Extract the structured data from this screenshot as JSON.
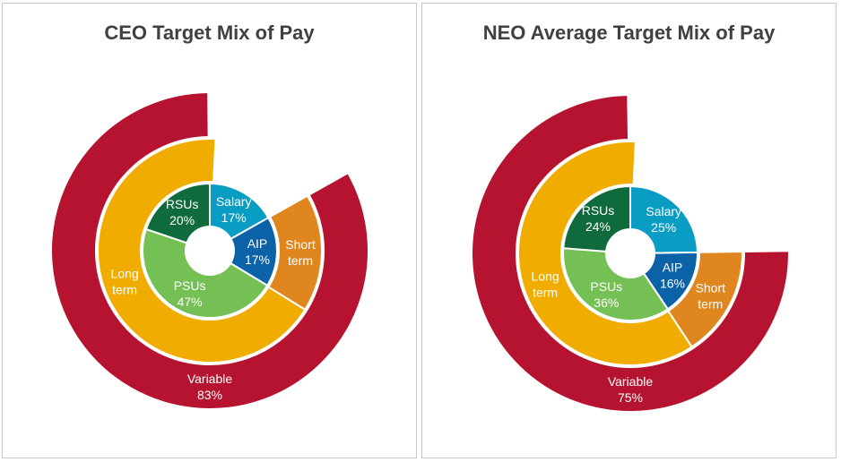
{
  "colors": {
    "variable": "#b5132f",
    "long_term": "#f0ad00",
    "short_term": "#e0861e",
    "salary": "#0a9dc4",
    "aip": "#0b62a6",
    "psus": "#74c054",
    "rsus": "#0f6b3b",
    "gap": "#ffffff"
  },
  "chart_data": [
    {
      "type": "nested-pie",
      "title": "CEO Target Mix of Pay",
      "rings": {
        "outer": [
          {
            "key": "variable",
            "label": "Variable",
            "value": 83,
            "value_label": "83%"
          }
        ],
        "middle": [
          {
            "key": "short_term",
            "label": "Short term",
            "lines": [
              "Short",
              "term"
            ],
            "value": 17
          },
          {
            "key": "long_term",
            "label": "Long term",
            "lines": [
              "Long",
              "term"
            ],
            "value": 67
          }
        ],
        "inner": [
          {
            "key": "salary",
            "label": "Salary",
            "value": 17,
            "value_label": "17%"
          },
          {
            "key": "aip",
            "label": "AIP",
            "value": 17,
            "value_label": "17%"
          },
          {
            "key": "psus",
            "label": "PSUs",
            "value": 47,
            "value_label": "47%"
          },
          {
            "key": "rsus",
            "label": "RSUs",
            "value": 20,
            "value_label": "20%"
          }
        ]
      }
    },
    {
      "type": "nested-pie",
      "title": "NEO Average Target Mix of Pay",
      "rings": {
        "outer": [
          {
            "key": "variable",
            "label": "Variable",
            "value": 75,
            "value_label": "75%"
          }
        ],
        "middle": [
          {
            "key": "short_term",
            "label": "Short term",
            "lines": [
              "Short",
              "term"
            ],
            "value": 16
          },
          {
            "key": "long_term",
            "label": "Long term",
            "lines": [
              "Long",
              "term"
            ],
            "value": 60
          }
        ],
        "inner": [
          {
            "key": "salary",
            "label": "Salary",
            "value": 25,
            "value_label": "25%"
          },
          {
            "key": "aip",
            "label": "AIP",
            "value": 16,
            "value_label": "16%"
          },
          {
            "key": "psus",
            "label": "PSUs",
            "value": 36,
            "value_label": "36%"
          },
          {
            "key": "rsus",
            "label": "RSUs",
            "value": 24,
            "value_label": "24%"
          }
        ]
      }
    }
  ]
}
